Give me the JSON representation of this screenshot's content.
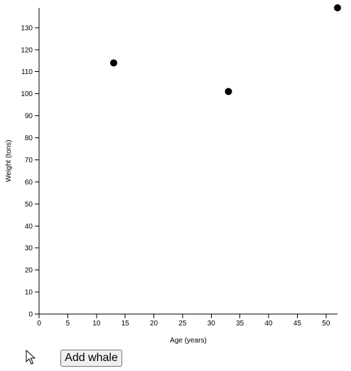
{
  "chart_data": {
    "type": "scatter",
    "title": "",
    "xlabel": "Age (years)",
    "ylabel": "Weight (tons)",
    "xlim": [
      0,
      52
    ],
    "ylim": [
      0,
      139
    ],
    "x_ticks": [
      0,
      5,
      10,
      15,
      20,
      25,
      30,
      35,
      40,
      45,
      50
    ],
    "y_ticks": [
      0,
      10,
      20,
      30,
      40,
      50,
      60,
      70,
      80,
      90,
      100,
      110,
      120,
      130
    ],
    "grid": false,
    "legend": "none",
    "marker_color": "#000000",
    "series": [
      {
        "x": [
          13,
          33,
          52
        ],
        "y": [
          114,
          101,
          139
        ]
      }
    ]
  },
  "controls": {
    "add_button_label": "Add whale"
  },
  "icons": {
    "cursor": "mouse-pointer-icon"
  }
}
